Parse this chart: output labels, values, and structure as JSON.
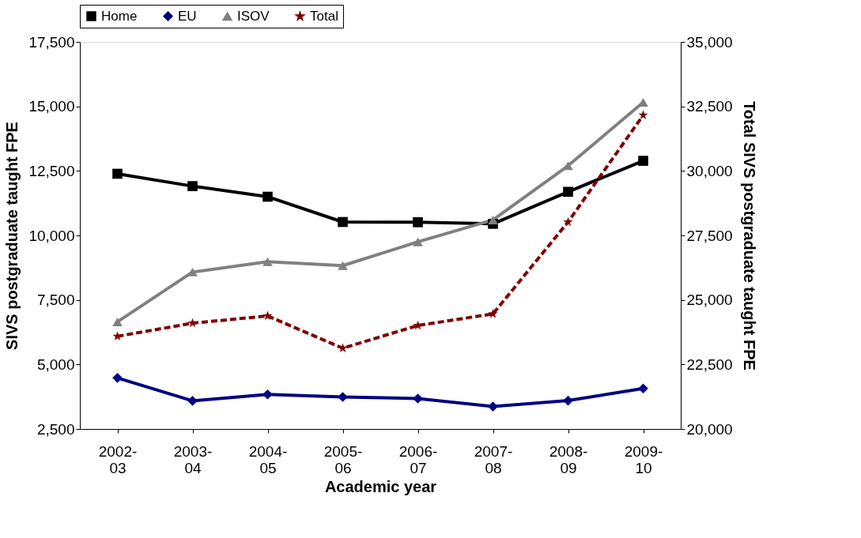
{
  "chart_data": {
    "type": "line",
    "xlabel": "Academic year",
    "ylabel": "SIVS postgraduate taught FPE",
    "y2label": "Total SIVS postgraduate taught FPE",
    "categories": [
      "2002-03",
      "2003-04",
      "2004-05",
      "2005-06",
      "2006-07",
      "2007-08",
      "2008-09",
      "2009-10"
    ],
    "series": [
      {
        "name": "Home",
        "color": "#000000",
        "marker": "square",
        "line_style": "solid",
        "values": [
          12390,
          11910,
          11500,
          10520,
          10510,
          10450,
          11690,
          12890
        ]
      },
      {
        "name": "EU",
        "color": "#000080",
        "marker": "diamond",
        "line_style": "solid",
        "values": [
          4480,
          3590,
          3840,
          3740,
          3680,
          3370,
          3600,
          4070
        ]
      },
      {
        "name": "ISOV",
        "color": "#808080",
        "marker": "triangle",
        "line_style": "solid",
        "values": [
          6650,
          8580,
          8980,
          8830,
          9750,
          10600,
          12700,
          15160
        ]
      },
      {
        "name": "Total",
        "color": "#800000",
        "marker": "star",
        "line_style": "dashed",
        "axis": "y2",
        "values": [
          23590,
          24100,
          24380,
          23130,
          24010,
          24460,
          28020,
          32160
        ]
      }
    ],
    "ylim": [
      2500,
      17500
    ],
    "yticks": [
      {
        "value": 2500,
        "label": "2,500"
      },
      {
        "value": 5000,
        "label": "5,000"
      },
      {
        "value": 7500,
        "label": "7,500"
      },
      {
        "value": 10000,
        "label": "10,000"
      },
      {
        "value": 12500,
        "label": "12,500"
      },
      {
        "value": 15000,
        "label": "15,000"
      },
      {
        "value": 17500,
        "label": "17,500"
      }
    ],
    "y2lim": [
      20000,
      35000
    ],
    "y2ticks": [
      {
        "value": 20000,
        "label": "20,000"
      },
      {
        "value": 22500,
        "label": "22,500"
      },
      {
        "value": 25000,
        "label": "25,000"
      },
      {
        "value": 27500,
        "label": "27,500"
      },
      {
        "value": 30000,
        "label": "30,000"
      },
      {
        "value": 32500,
        "label": "32,500"
      },
      {
        "value": 35000,
        "label": "35,000"
      }
    ],
    "legend": "top",
    "grid": false
  }
}
